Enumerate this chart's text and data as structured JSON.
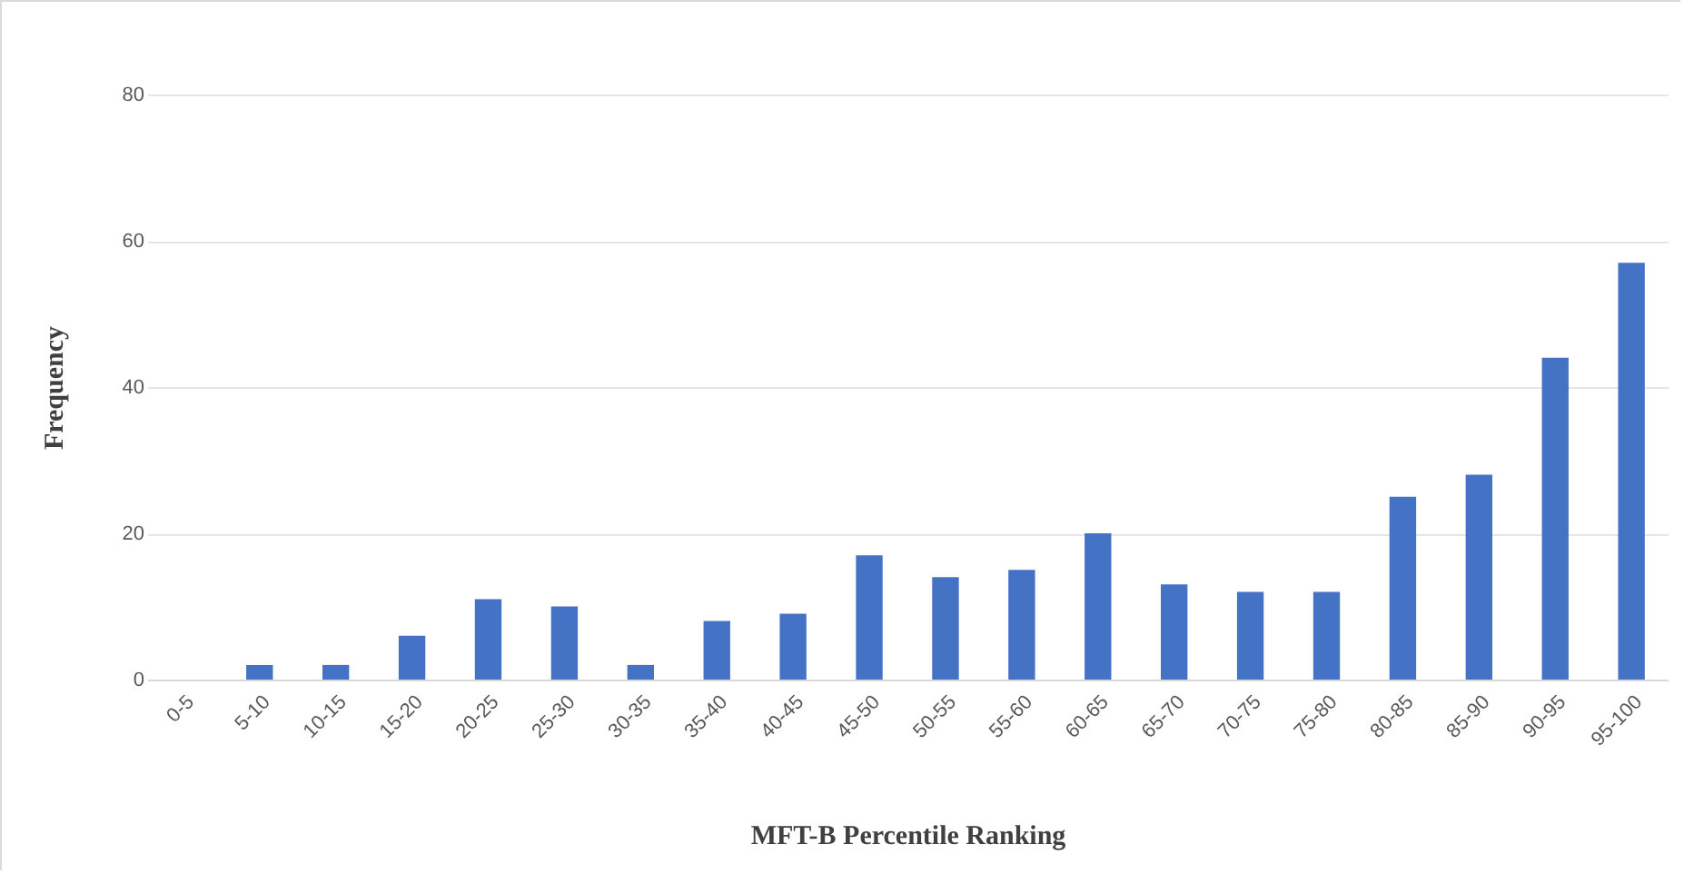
{
  "chart_data": {
    "type": "bar",
    "xlabel": "MFT-B Percentile Ranking",
    "ylabel": "Frequency",
    "categories": [
      "0-5",
      "5-10",
      "10-15",
      "15-20",
      "20-25",
      "25-30",
      "30-35",
      "35-40",
      "40-45",
      "45-50",
      "50-55",
      "55-60",
      "60-65",
      "65-70",
      "70-75",
      "75-80",
      "80-85",
      "85-90",
      "90-95",
      "95-100"
    ],
    "values": [
      0,
      2,
      2,
      6,
      11,
      10,
      2,
      8,
      9,
      17,
      14,
      15,
      20,
      13,
      12,
      12,
      25,
      28,
      44,
      57
    ],
    "color": "#4472c4",
    "ylim": [
      0,
      80
    ],
    "yticks": [
      0,
      20,
      40,
      60,
      80
    ],
    "grid": "y"
  }
}
